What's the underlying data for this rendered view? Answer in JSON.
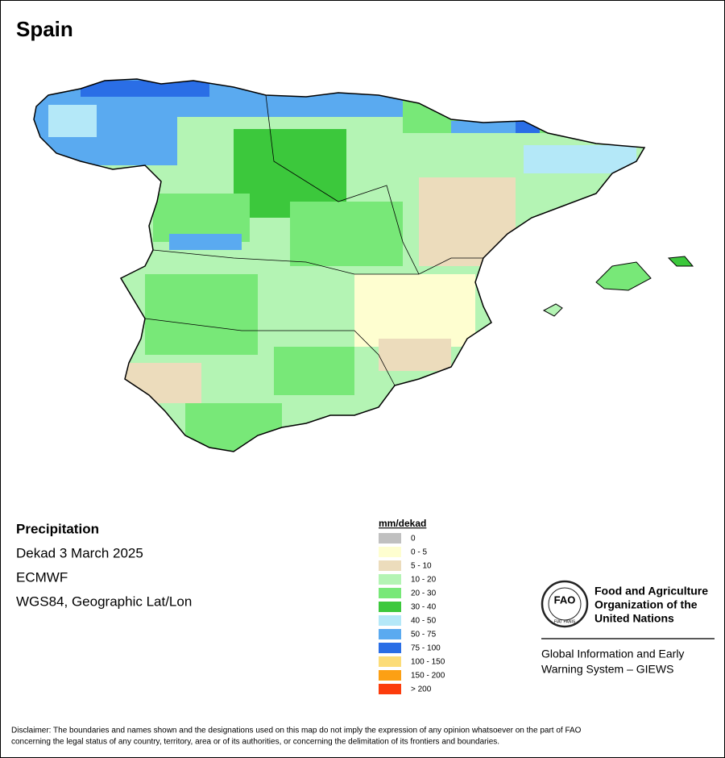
{
  "header": {
    "title": "Spain"
  },
  "info": [
    "Precipitation",
    "Dekad 3 March 2025",
    "ECMWF",
    "WGS84, Geographic Lat/Lon"
  ],
  "legend": {
    "title": "mm/dekad",
    "items": [
      {
        "label": "0",
        "color": "#c0c0c0"
      },
      {
        "label": "0 - 5",
        "color": "#fefed0"
      },
      {
        "label": "5 - 10",
        "color": "#ecdcbc"
      },
      {
        "label": "10 - 20",
        "color": "#b4f4b4"
      },
      {
        "label": "20 - 30",
        "color": "#78e878"
      },
      {
        "label": "30 - 40",
        "color": "#3cc83c"
      },
      {
        "label": "40 - 50",
        "color": "#b4e8f8"
      },
      {
        "label": "50 - 75",
        "color": "#5aaaf0"
      },
      {
        "label": "75 - 100",
        "color": "#2a6ee6"
      },
      {
        "label": "100 - 150",
        "color": "#fcdc78"
      },
      {
        "label": "150 - 200",
        "color": "#fca014"
      },
      {
        "label": "> 200",
        "color": "#fc3c0c"
      }
    ]
  },
  "logo": {
    "acronym": "FAO",
    "motto": "FIAT PANIS"
  },
  "organization": {
    "name": [
      "Food and Agriculture",
      "Organization of the",
      "United Nations"
    ],
    "system": [
      "Global Information and Early",
      "Warning System – GIEWS"
    ]
  },
  "disclaimer": [
    "Disclaimer: The boundaries and names shown and the designations used on this map do not imply the expression of any opinion whatsoever on the part of FAO",
    "concerning the legal status of any country, territory, area or of its authorities, or concerning the delimitation of its frontiers and boundaries."
  ]
}
